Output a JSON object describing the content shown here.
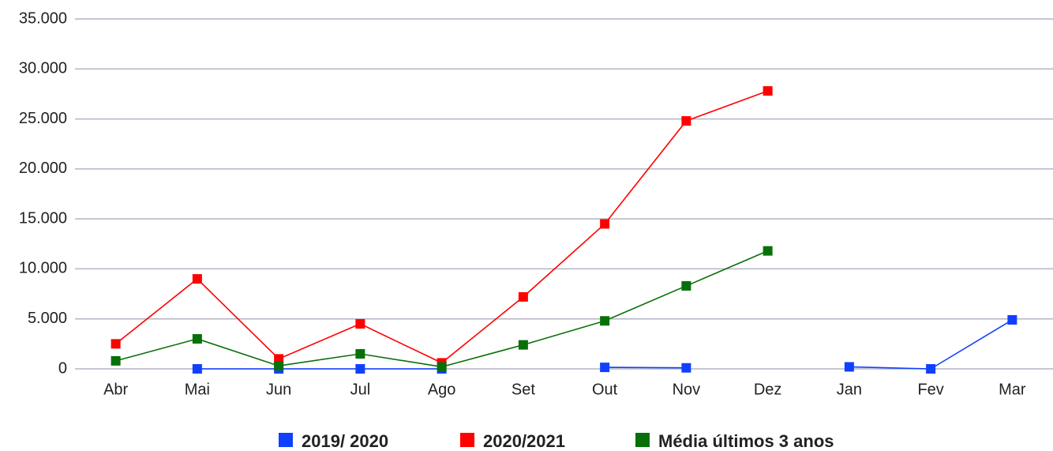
{
  "chart_data": {
    "type": "line",
    "categories": [
      "Abr",
      "Mai",
      "Jun",
      "Jul",
      "Ago",
      "Set",
      "Out",
      "Nov",
      "Dez",
      "Jan",
      "Fev",
      "Mar"
    ],
    "series": [
      {
        "name": "2019/ 2020",
        "color": "#1040ff",
        "values": [
          null,
          0,
          0,
          0,
          0,
          null,
          150,
          100,
          null,
          200,
          0,
          4900
        ]
      },
      {
        "name": "2020/2021",
        "color": "#ff0000",
        "values": [
          2500,
          9000,
          1000,
          4500,
          600,
          7200,
          14500,
          24800,
          27800,
          null,
          null,
          null
        ]
      },
      {
        "name": "Média últimos 3 anos",
        "color": "#087008",
        "values": [
          800,
          3000,
          300,
          1500,
          200,
          2400,
          4800,
          8300,
          11800,
          null,
          null,
          null
        ]
      }
    ],
    "ylim": [
      0,
      35000
    ],
    "yticks": [
      0,
      {
        "value": 5000,
        "label": "5.000"
      },
      {
        "value": 10000,
        "label": "10.000"
      },
      {
        "value": 15000,
        "label": "15.000"
      },
      {
        "value": 20000,
        "label": "20.000"
      },
      {
        "value": 25000,
        "label": "25.000"
      },
      {
        "value": 30000,
        "label": "30.000"
      },
      {
        "value": 35000,
        "label": "35.000"
      }
    ],
    "grid": true,
    "legend_position": "bottom"
  }
}
